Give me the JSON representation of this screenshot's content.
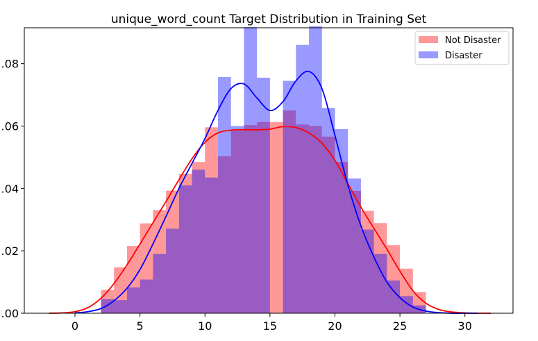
{
  "chart_data": {
    "type": "histogram+kde",
    "title": "unique_word_count Target Distribution in Training Set",
    "xlabel": "",
    "ylabel": "",
    "xlim": [
      -3.9,
      33.7
    ],
    "ylim": [
      0,
      0.0915
    ],
    "x_ticks": [
      0,
      5,
      10,
      15,
      20,
      25,
      30
    ],
    "y_ticks": [
      0.0,
      0.02,
      0.04,
      0.06,
      0.08
    ],
    "y_tick_labels": [
      ".00",
      ".02",
      ".04",
      ".06",
      ".08"
    ],
    "bin_edges": [
      1,
      2,
      3,
      4,
      5,
      6,
      7,
      8,
      9,
      10,
      11,
      12,
      13,
      14,
      15,
      16,
      17,
      18,
      19,
      20,
      21,
      22,
      23,
      24,
      25,
      26,
      27
    ],
    "legend_position": "top-right",
    "series": [
      {
        "name": "Not Disaster",
        "color": "#ff0000",
        "hist_alpha": 0.4,
        "hist_values": [
          0.0,
          0.0075,
          0.0147,
          0.0216,
          0.0288,
          0.0331,
          0.0393,
          0.0447,
          0.0485,
          0.0596,
          0.0503,
          0.0585,
          0.0603,
          0.0613,
          0.0613,
          0.065,
          0.0605,
          0.06,
          0.0566,
          0.0485,
          0.0392,
          0.0328,
          0.0289,
          0.0218,
          0.0143,
          0.0068
        ],
        "kde_x": [
          -2,
          -1,
          0,
          1,
          2,
          3,
          4,
          5,
          6,
          7,
          8,
          9,
          10,
          11,
          12,
          13,
          14,
          15,
          16,
          17,
          18,
          19,
          20,
          21,
          22,
          23,
          24,
          25,
          26,
          27,
          28,
          29,
          30,
          31,
          32
        ],
        "kde_y": [
          0.0,
          0.0001,
          0.0005,
          0.0018,
          0.0048,
          0.0095,
          0.0155,
          0.0222,
          0.029,
          0.0358,
          0.0428,
          0.0495,
          0.0548,
          0.0578,
          0.0587,
          0.0588,
          0.0588,
          0.059,
          0.0598,
          0.0595,
          0.0578,
          0.0545,
          0.049,
          0.0415,
          0.034,
          0.0272,
          0.0205,
          0.0135,
          0.0072,
          0.0032,
          0.0012,
          0.0004,
          0.0001,
          0.0,
          0.0
        ]
      },
      {
        "name": "Disaster",
        "color": "#0000ff",
        "hist_alpha": 0.4,
        "hist_values": [
          0.0,
          0.0045,
          0.0042,
          0.0083,
          0.0108,
          0.019,
          0.0271,
          0.041,
          0.046,
          0.0435,
          0.0757,
          0.06,
          0.0917,
          0.0755,
          0.0,
          0.0745,
          0.086,
          0.092,
          0.0658,
          0.059,
          0.0432,
          0.0268,
          0.019,
          0.0105,
          0.0055,
          0.0025
        ],
        "kde_x": [
          0,
          1,
          2,
          3,
          4,
          5,
          6,
          7,
          8,
          9,
          10,
          11,
          12,
          13,
          14,
          15,
          16,
          17,
          18,
          19,
          20,
          21,
          22,
          23,
          24,
          25,
          26,
          27,
          28,
          29,
          30,
          31
        ],
        "kde_y": [
          0.0001,
          0.0005,
          0.0015,
          0.004,
          0.008,
          0.014,
          0.0222,
          0.031,
          0.04,
          0.048,
          0.056,
          0.065,
          0.072,
          0.0735,
          0.069,
          0.065,
          0.0678,
          0.0745,
          0.0775,
          0.072,
          0.057,
          0.041,
          0.028,
          0.018,
          0.01,
          0.005,
          0.002,
          0.0007,
          0.0002,
          0.0,
          0.0,
          0.0
        ]
      }
    ]
  }
}
